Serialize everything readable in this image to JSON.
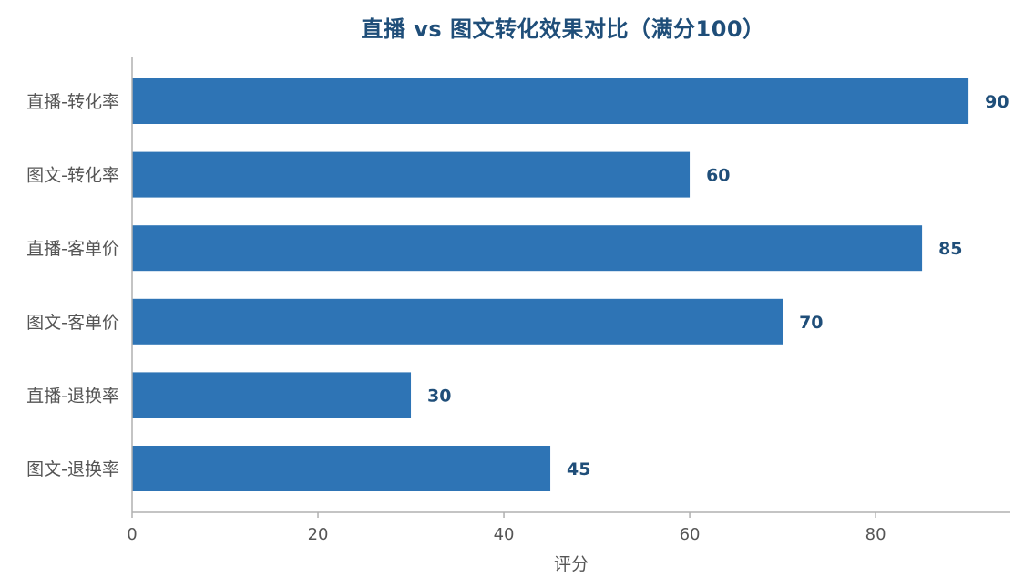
{
  "chart_data": {
    "type": "bar",
    "orientation": "horizontal",
    "title": "直播 vs 图文转化效果对比（满分100）",
    "xlabel": "评分",
    "ylabel": "",
    "categories": [
      "直播-转化率",
      "图文-转化率",
      "直播-客单价",
      "图文-客单价",
      "直播-退换率",
      "图文-退换率"
    ],
    "values": [
      90,
      60,
      85,
      70,
      30,
      45
    ],
    "xlim": [
      0,
      94.5
    ],
    "xticks": [
      0,
      20,
      40,
      60,
      80
    ],
    "grid": false,
    "bar_color": "#2e74b5",
    "label_color": "#1f4e79"
  }
}
